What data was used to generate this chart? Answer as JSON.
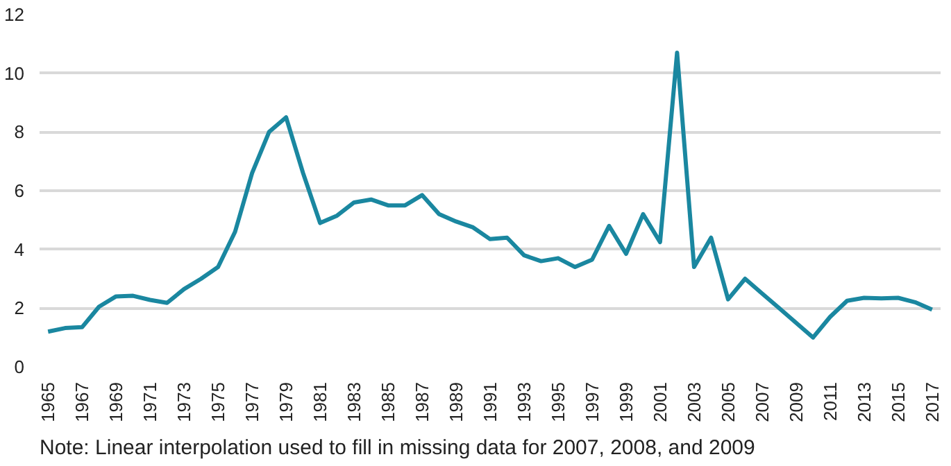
{
  "chart_data": {
    "type": "line",
    "x": [
      1965,
      1966,
      1967,
      1968,
      1969,
      1970,
      1971,
      1972,
      1973,
      1974,
      1975,
      1976,
      1977,
      1978,
      1979,
      1980,
      1981,
      1982,
      1983,
      1984,
      1985,
      1986,
      1987,
      1988,
      1989,
      1990,
      1991,
      1992,
      1993,
      1994,
      1995,
      1996,
      1997,
      1998,
      1999,
      2000,
      2001,
      2002,
      2003,
      2004,
      2005,
      2006,
      2007,
      2008,
      2009,
      2010,
      2011,
      2012,
      2013,
      2014,
      2015,
      2016,
      2017
    ],
    "series": [
      {
        "color": "#1a87a0",
        "values": [
          1.2,
          1.32,
          1.35,
          2.05,
          2.4,
          2.42,
          2.28,
          2.18,
          2.65,
          3.0,
          3.4,
          4.6,
          6.6,
          8.0,
          8.5,
          6.6,
          4.9,
          5.15,
          5.6,
          5.7,
          5.5,
          5.5,
          5.85,
          5.2,
          4.95,
          4.75,
          4.35,
          4.4,
          3.8,
          3.6,
          3.7,
          3.4,
          3.65,
          4.8,
          3.85,
          5.2,
          4.25,
          10.7,
          3.4,
          4.4,
          2.3,
          3.0,
          2.5,
          2.0,
          1.5,
          1.0,
          1.7,
          2.25,
          2.35,
          2.33,
          2.35,
          2.2,
          1.95
        ]
      }
    ],
    "xlim": [
      1964.5,
      2017.5
    ],
    "xticks": [
      1965,
      1967,
      1969,
      1971,
      1973,
      1975,
      1977,
      1979,
      1981,
      1983,
      1985,
      1987,
      1989,
      1991,
      1993,
      1995,
      1997,
      1999,
      2001,
      2003,
      2005,
      2007,
      2009,
      2011,
      2013,
      2015,
      2017
    ],
    "ylim": [
      0,
      12
    ],
    "yticks": [
      0,
      2,
      4,
      6,
      8,
      10,
      12
    ],
    "grid": "y",
    "marker": "none",
    "annotations": [
      "Note: Linear interpolation used to fill in missing data for 2007, 2008, and 2009"
    ]
  }
}
